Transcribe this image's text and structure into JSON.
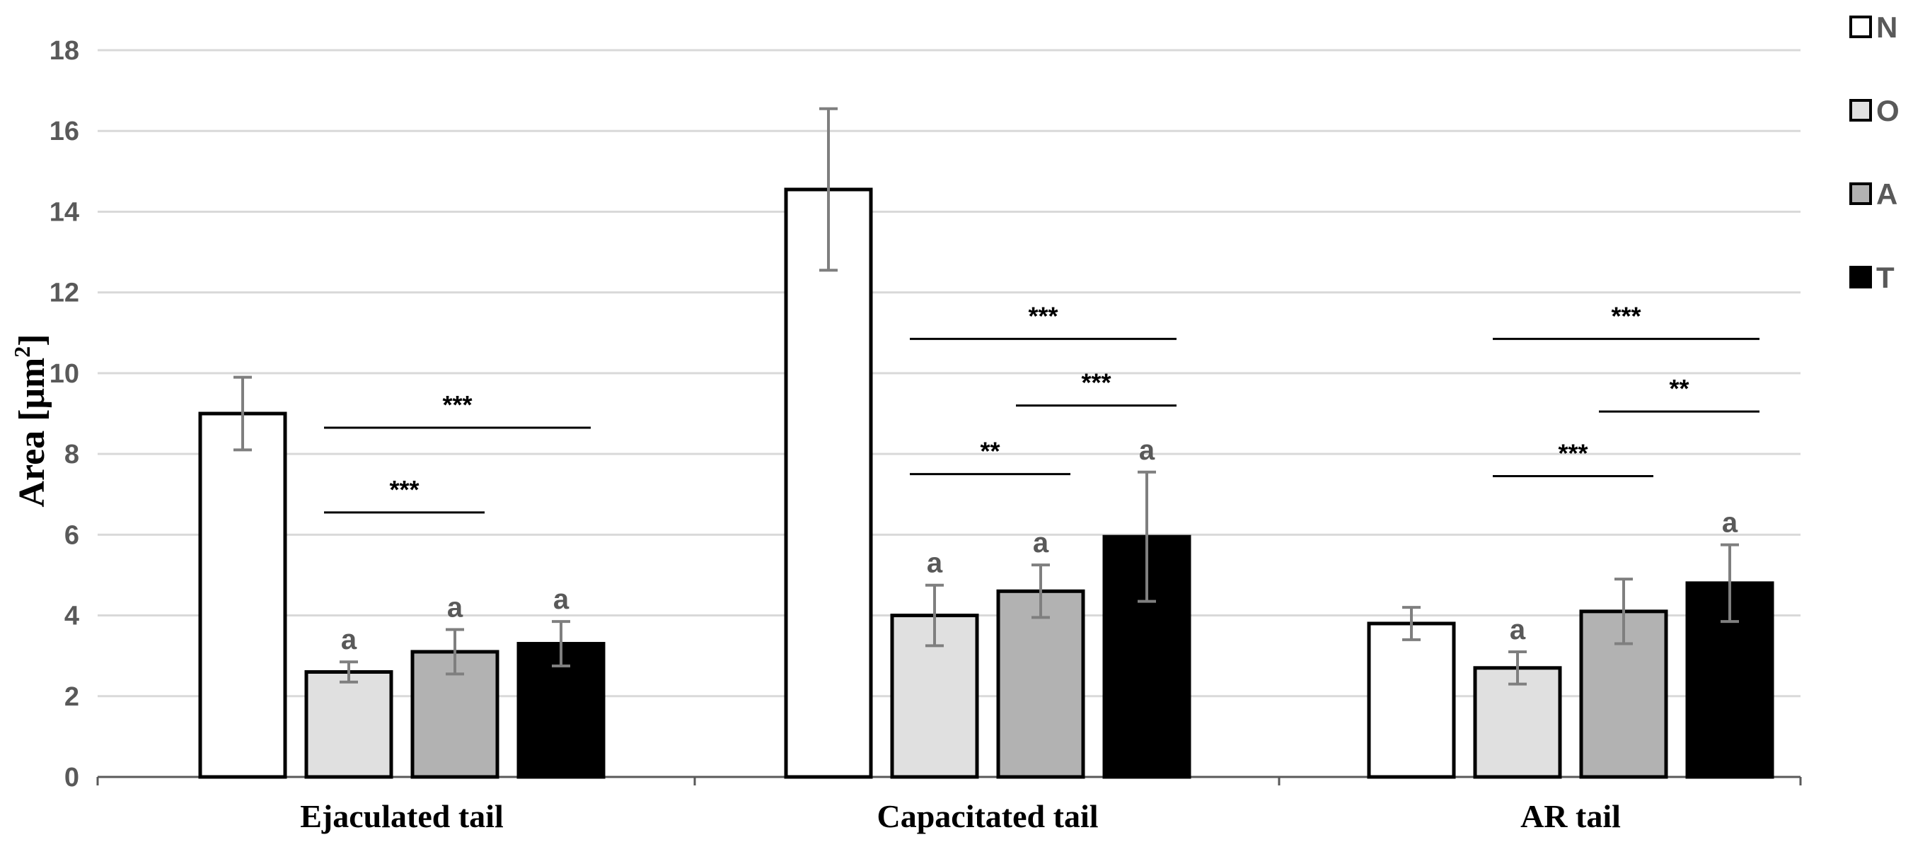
{
  "chart_data": {
    "type": "bar",
    "ylabel_main": "Area [μm",
    "ylabel_sup": "2",
    "ylabel_end": "]",
    "xlabel": "",
    "ylim": [
      0,
      18
    ],
    "yticks": [
      0,
      2,
      4,
      6,
      8,
      10,
      12,
      14,
      16,
      18
    ],
    "grid": true,
    "legend_position": "top-right",
    "categories": [
      "Ejaculated tail",
      "Capacitated tail",
      "AR tail"
    ],
    "series": [
      {
        "name": "N",
        "color": "#ffffff",
        "values": [
          9.0,
          14.55,
          3.8
        ],
        "errors": [
          0.9,
          2.0,
          0.4
        ],
        "letters": [
          "",
          "",
          ""
        ]
      },
      {
        "name": "O",
        "color": "#e0e0e0",
        "values": [
          2.6,
          4.0,
          2.7
        ],
        "errors": [
          0.25,
          0.75,
          0.4
        ],
        "letters": [
          "a",
          "a",
          "a"
        ]
      },
      {
        "name": "A",
        "color": "#b2b2b2",
        "values": [
          3.1,
          4.6,
          4.1
        ],
        "errors": [
          0.55,
          0.65,
          0.8
        ],
        "letters": [
          "a",
          "a",
          ""
        ]
      },
      {
        "name": "T",
        "color": "#000000",
        "values": [
          3.3,
          5.95,
          4.8
        ],
        "errors": [
          0.55,
          1.6,
          0.95
        ],
        "letters": [
          "a",
          "a",
          "a"
        ]
      }
    ],
    "significance": [
      {
        "category": 0,
        "from": 1,
        "to": 3,
        "y": 8.65,
        "label": "***"
      },
      {
        "category": 0,
        "from": 1,
        "to": 2,
        "y": 6.55,
        "label": "***"
      },
      {
        "category": 1,
        "from": 1,
        "to": 3,
        "y": 10.85,
        "label": "***"
      },
      {
        "category": 1,
        "from": 2,
        "to": 3,
        "y": 9.2,
        "label": "***"
      },
      {
        "category": 1,
        "from": 1,
        "to": 2,
        "y": 7.5,
        "label": "**"
      },
      {
        "category": 2,
        "from": 1,
        "to": 3,
        "y": 10.85,
        "label": "***"
      },
      {
        "category": 2,
        "from": 2,
        "to": 3,
        "y": 9.05,
        "label": "**"
      },
      {
        "category": 2,
        "from": 1,
        "to": 2,
        "y": 7.45,
        "label": "***"
      }
    ]
  }
}
